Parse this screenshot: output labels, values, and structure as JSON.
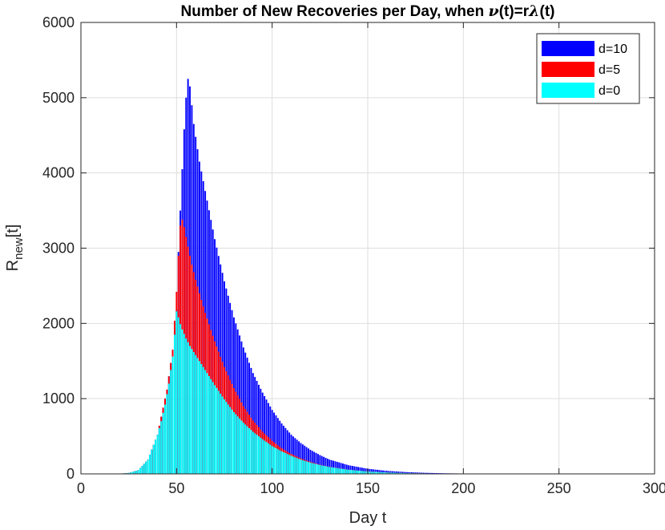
{
  "chart_data": {
    "type": "bar",
    "title": {
      "prefix": "Number of New Recoveries per Day, when ",
      "nu": "ν",
      "mid": "(t)=r",
      "lambda": "λ",
      "suffix": "(t)"
    },
    "xlabel": "Day t",
    "ylabel": {
      "main": "R",
      "sub": "new",
      "suffix": "[t]"
    },
    "xlim": [
      0,
      300
    ],
    "ylim": [
      0,
      6000
    ],
    "xticks": [
      0,
      50,
      100,
      150,
      200,
      250,
      300
    ],
    "yticks": [
      0,
      1000,
      2000,
      3000,
      4000,
      5000,
      6000
    ],
    "grid": true,
    "legend_position": "top-right",
    "series_order_front_to_back": [
      "d=0",
      "d=5",
      "d=10"
    ],
    "series": [
      {
        "name": "d=10",
        "color": "#0000ff",
        "x": [
          20,
          25,
          30,
          35,
          40,
          45,
          48,
          50,
          51,
          52,
          53,
          54,
          55,
          56,
          57,
          58,
          59,
          60,
          62,
          65,
          70,
          75,
          80,
          85,
          90,
          95,
          100,
          105,
          110,
          115,
          120,
          125,
          130,
          140,
          150,
          160,
          170,
          180,
          190,
          200,
          210,
          220,
          230,
          240,
          250,
          260,
          270,
          280,
          290,
          300
        ],
        "values": [
          2,
          12,
          50,
          190,
          520,
          1120,
          1650,
          2180,
          2950,
          3500,
          4050,
          4580,
          5000,
          5250,
          5150,
          4900,
          4650,
          4480,
          4150,
          3760,
          3120,
          2560,
          2080,
          1680,
          1340,
          1080,
          850,
          670,
          520,
          410,
          320,
          250,
          190,
          115,
          68,
          40,
          24,
          14,
          8,
          5,
          3,
          2,
          1,
          1,
          0,
          0,
          0,
          0,
          0,
          0
        ]
      },
      {
        "name": "d=5",
        "color": "#ff0000",
        "x": [
          20,
          25,
          30,
          35,
          40,
          45,
          48,
          50,
          51,
          52,
          53,
          54,
          55,
          56,
          57,
          58,
          60,
          62,
          65,
          70,
          75,
          80,
          85,
          90,
          95,
          100,
          105,
          110,
          115,
          120,
          125,
          130,
          140,
          150,
          160,
          170,
          180,
          190,
          200,
          210,
          220,
          230,
          240,
          250,
          260,
          270,
          280,
          290,
          300
        ],
        "values": [
          2,
          12,
          50,
          190,
          520,
          1120,
          1650,
          2420,
          2900,
          3300,
          3380,
          3280,
          3150,
          3020,
          2900,
          2780,
          2580,
          2400,
          2140,
          1760,
          1420,
          1140,
          900,
          710,
          560,
          440,
          340,
          265,
          205,
          160,
          122,
          94,
          56,
          33,
          19,
          11,
          6,
          3,
          2,
          1,
          1,
          0,
          0,
          0,
          0,
          0,
          0,
          0,
          0
        ]
      },
      {
        "name": "d=0",
        "color": "#00ffff",
        "x": [
          20,
          25,
          30,
          35,
          40,
          42,
          44,
          46,
          48,
          49,
          50,
          51,
          52,
          53,
          54,
          55,
          56,
          57,
          58,
          60,
          62,
          65,
          70,
          75,
          80,
          85,
          90,
          95,
          100,
          105,
          110,
          115,
          120,
          125,
          130,
          140,
          150,
          160,
          170,
          180,
          190,
          200,
          210,
          220,
          230,
          240,
          250,
          260,
          270,
          280,
          290,
          300
        ],
        "values": [
          2,
          12,
          50,
          190,
          520,
          700,
          920,
          1200,
          1560,
          1850,
          2160,
          2080,
          1990,
          1920,
          1860,
          1800,
          1750,
          1700,
          1660,
          1580,
          1500,
          1380,
          1180,
          990,
          820,
          680,
          560,
          460,
          370,
          300,
          240,
          190,
          150,
          118,
          92,
          55,
          32,
          18,
          10,
          6,
          3,
          2,
          1,
          1,
          0,
          0,
          0,
          0,
          0,
          0,
          0,
          0
        ]
      }
    ]
  }
}
